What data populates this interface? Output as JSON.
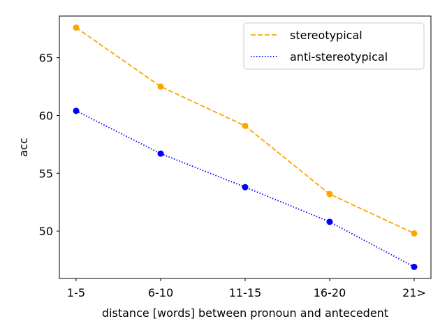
{
  "chart_data": {
    "type": "line",
    "categories": [
      "1-5",
      "6-10",
      "11-15",
      "16-20",
      "21>"
    ],
    "series": [
      {
        "name": "stereotypical",
        "values": [
          67.6,
          62.5,
          59.1,
          53.2,
          49.8
        ],
        "color": "#FFA500",
        "style": "dashed"
      },
      {
        "name": "anti-stereotypical",
        "values": [
          60.4,
          56.7,
          53.8,
          50.8,
          46.9
        ],
        "color": "#0000FF",
        "style": "dotted"
      }
    ],
    "xlabel": "distance [words] between pronoun and antecedent",
    "ylabel": "acc",
    "ylim": [
      45.9,
      68.6
    ],
    "yticks": [
      50,
      55,
      60,
      65
    ],
    "grid": false,
    "legend": "top-right"
  }
}
